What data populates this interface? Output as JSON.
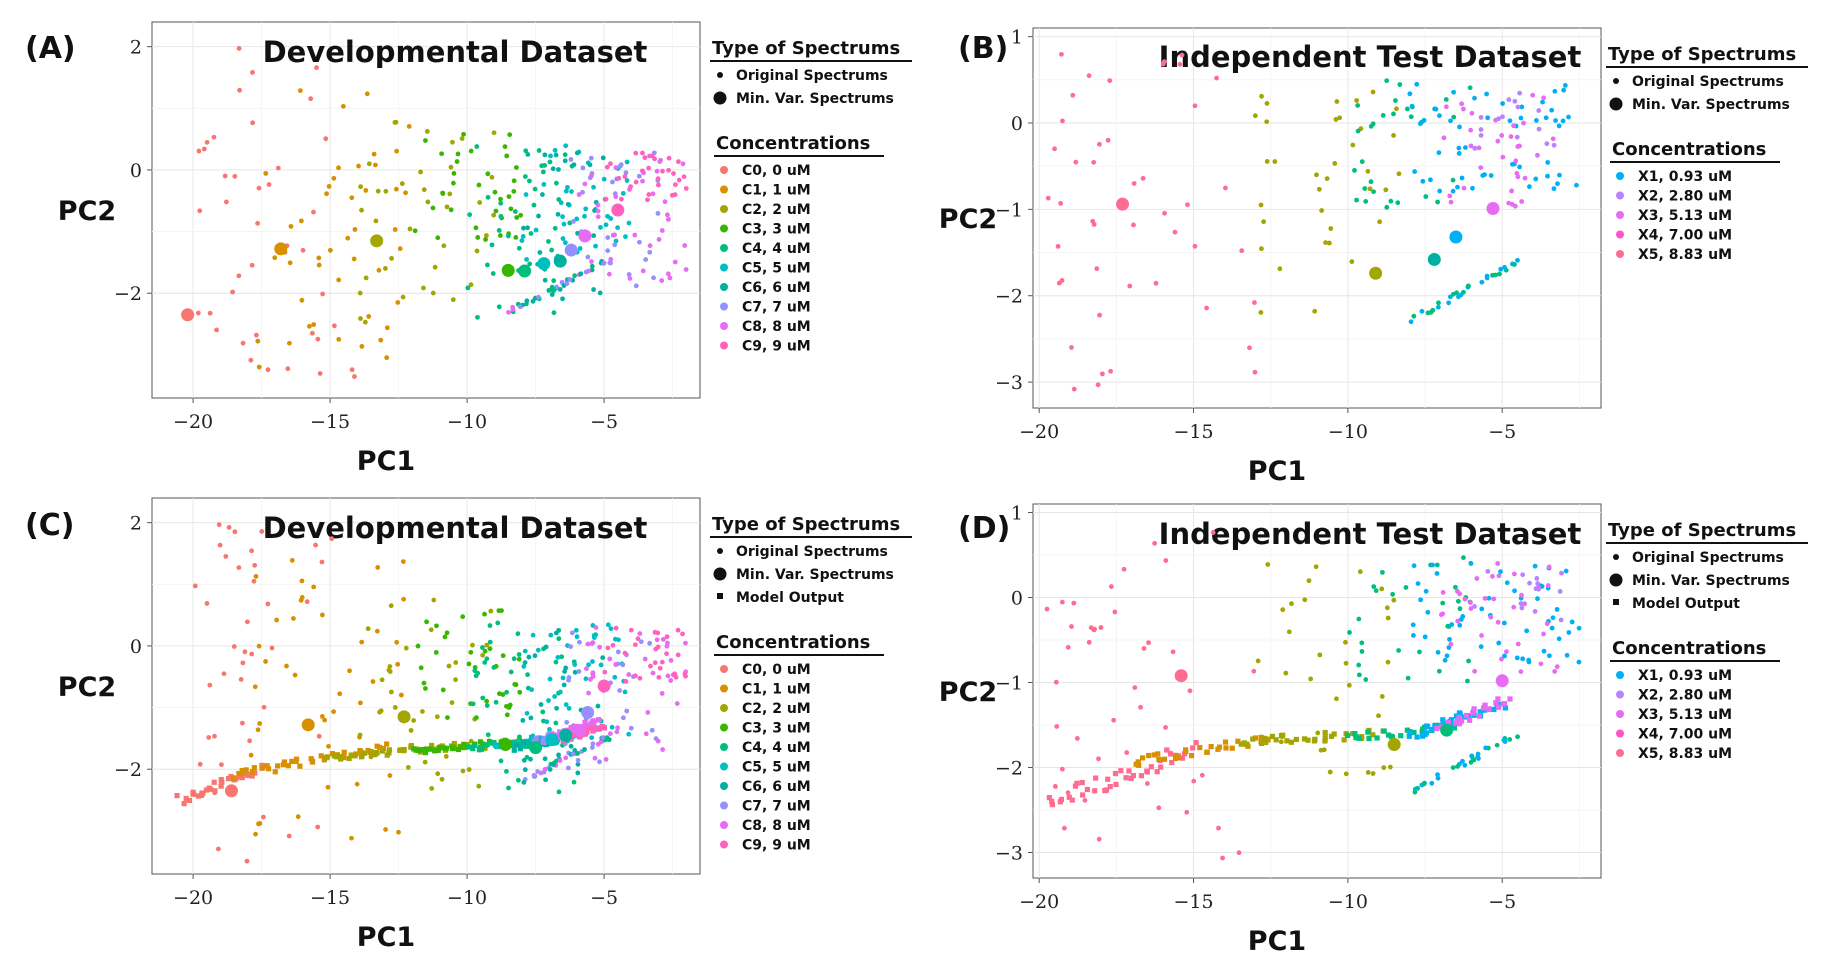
{
  "colors": {
    "C0": "#F8766D",
    "C1": "#D89000",
    "C2": "#A3A500",
    "C3": "#39B600",
    "C4": "#00BF7D",
    "C5": "#00BFC4",
    "C6": "#00B0A0",
    "C7": "#9590FF",
    "C8": "#E76BF3",
    "C9": "#FF62BC",
    "X1": "#00B0F6",
    "X2": "#B983FF",
    "X3": "#E76BF3",
    "X4": "#FF52C8",
    "X5": "#FF6C91"
  },
  "legends": {
    "type_title": "Type of Spectrums",
    "type_original": "Original Spectrums",
    "type_minvar": "Min. Var. Spectrums",
    "type_model": "Model Output",
    "conc_title": "Concentrations",
    "dev_concentrations": [
      {
        "key": "C0",
        "label": "C0, 0 uM"
      },
      {
        "key": "C1",
        "label": "C1, 1 uM"
      },
      {
        "key": "C2",
        "label": "C2, 2 uM"
      },
      {
        "key": "C3",
        "label": "C3, 3 uM"
      },
      {
        "key": "C4",
        "label": "C4, 4 uM"
      },
      {
        "key": "C5",
        "label": "C5, 5 uM"
      },
      {
        "key": "C6",
        "label": "C6, 6 uM"
      },
      {
        "key": "C7",
        "label": "C7, 7 uM"
      },
      {
        "key": "C8",
        "label": "C8, 8 uM"
      },
      {
        "key": "C9",
        "label": "C9, 9 uM"
      }
    ],
    "test_concentrations": [
      {
        "key": "X1",
        "label": "X1, 0.93 uM"
      },
      {
        "key": "X2",
        "label": "X2, 2.80 uM"
      },
      {
        "key": "X3",
        "label": "X3, 5.13 uM"
      },
      {
        "key": "X4",
        "label": "X4, 7.00 uM"
      },
      {
        "key": "X5",
        "label": "X5, 8.83 uM"
      }
    ]
  },
  "chart_data": [
    {
      "panel": "(A)",
      "type": "scatter",
      "title": "Developmental Dataset",
      "xlabel": "PC1",
      "ylabel": "PC2",
      "xlim": [
        -21.5,
        -1.5
      ],
      "ylim": [
        -3.7,
        2.4
      ],
      "xticks": [
        -20,
        -15,
        -10,
        -5
      ],
      "yticks": [
        -2,
        0,
        2
      ],
      "legend": "right",
      "minvar_points": [
        {
          "group": "C0",
          "x": -20.2,
          "y": -2.35
        },
        {
          "group": "C1",
          "x": -16.8,
          "y": -1.28
        },
        {
          "group": "C2",
          "x": -13.3,
          "y": -1.15
        },
        {
          "group": "C3",
          "x": -8.5,
          "y": -1.63
        },
        {
          "group": "C4",
          "x": -7.9,
          "y": -1.64
        },
        {
          "group": "C5",
          "x": -7.2,
          "y": -1.52
        },
        {
          "group": "C6",
          "x": -6.6,
          "y": -1.48
        },
        {
          "group": "C7",
          "x": -6.2,
          "y": -1.3
        },
        {
          "group": "C8",
          "x": -5.7,
          "y": -1.07
        },
        {
          "group": "C9",
          "x": -4.5,
          "y": -0.65
        }
      ],
      "model_output": []
    },
    {
      "panel": "(B)",
      "type": "scatter",
      "title": "Independent Test Dataset",
      "xlabel": "PC1",
      "ylabel": "PC2",
      "xlim": [
        -20.2,
        -1.8
      ],
      "ylim": [
        -3.3,
        1.1
      ],
      "xticks": [
        -20,
        -15,
        -10,
        -5
      ],
      "yticks": [
        -3,
        -2,
        -1,
        0,
        1
      ],
      "legend": "right",
      "minvar_points": [
        {
          "group": "X5",
          "x": -17.3,
          "y": -0.94
        },
        {
          "group": "C2",
          "x": -9.1,
          "y": -1.74
        },
        {
          "group": "C6",
          "x": -7.2,
          "y": -1.58
        },
        {
          "group": "X1",
          "x": -6.5,
          "y": -1.32
        },
        {
          "group": "X3",
          "x": -5.3,
          "y": -0.99
        }
      ],
      "model_output": []
    },
    {
      "panel": "(C)",
      "type": "scatter",
      "title": "Developmental Dataset",
      "xlabel": "PC1",
      "ylabel": "PC2",
      "xlim": [
        -21.5,
        -1.5
      ],
      "ylim": [
        -3.7,
        2.4
      ],
      "xticks": [
        -20,
        -15,
        -10,
        -5
      ],
      "yticks": [
        -2,
        0,
        2
      ],
      "legend": "right",
      "minvar_points": [
        {
          "group": "C0",
          "x": -18.6,
          "y": -2.35
        },
        {
          "group": "C1",
          "x": -15.8,
          "y": -1.28
        },
        {
          "group": "C2",
          "x": -12.3,
          "y": -1.15
        },
        {
          "group": "C3",
          "x": -8.6,
          "y": -1.6
        },
        {
          "group": "C4",
          "x": -7.5,
          "y": -1.65
        },
        {
          "group": "C5",
          "x": -6.9,
          "y": -1.52
        },
        {
          "group": "C6",
          "x": -6.4,
          "y": -1.45
        },
        {
          "group": "C7",
          "x": -5.6,
          "y": -1.08
        },
        {
          "group": "C8",
          "x": -5.9,
          "y": -1.37
        },
        {
          "group": "C9",
          "x": -5.0,
          "y": -0.65
        }
      ],
      "model_output": [
        {
          "group": "C0",
          "from": [
            -20.5,
            -2.5
          ],
          "to": [
            -17.5,
            -2.0
          ],
          "n": 34,
          "spread": 0.08
        },
        {
          "group": "C1",
          "from": [
            -18.5,
            -2.1
          ],
          "to": [
            -13.0,
            -1.65
          ],
          "n": 40,
          "spread": 0.07
        },
        {
          "group": "C2",
          "from": [
            -15.0,
            -1.8
          ],
          "to": [
            -10.0,
            -1.6
          ],
          "n": 40,
          "spread": 0.06
        },
        {
          "group": "C3",
          "from": [
            -12.0,
            -1.7
          ],
          "to": [
            -8.0,
            -1.55
          ],
          "n": 34,
          "spread": 0.05
        },
        {
          "group": "C4",
          "from": [
            -10.0,
            -1.65
          ],
          "to": [
            -7.0,
            -1.55
          ],
          "n": 30,
          "spread": 0.05
        },
        {
          "group": "C5",
          "from": [
            -9.0,
            -1.6
          ],
          "to": [
            -6.0,
            -1.45
          ],
          "n": 34,
          "spread": 0.05
        },
        {
          "group": "C6",
          "from": [
            -8.5,
            -1.65
          ],
          "to": [
            -6.5,
            -1.5
          ],
          "n": 22,
          "spread": 0.05
        },
        {
          "group": "C7",
          "from": [
            -7.5,
            -1.55
          ],
          "to": [
            -5.5,
            -1.3
          ],
          "n": 26,
          "spread": 0.05
        },
        {
          "group": "C8",
          "from": [
            -7.0,
            -1.5
          ],
          "to": [
            -5.2,
            -1.2
          ],
          "n": 28,
          "spread": 0.05
        },
        {
          "group": "C9",
          "from": [
            -6.5,
            -1.5
          ],
          "to": [
            -5.0,
            -1.3
          ],
          "n": 26,
          "spread": 0.05
        }
      ]
    },
    {
      "panel": "(D)",
      "type": "scatter",
      "title": "Independent Test Dataset",
      "xlabel": "PC1",
      "ylabel": "PC2",
      "xlim": [
        -20.2,
        -1.8
      ],
      "ylim": [
        -3.3,
        1.1
      ],
      "xticks": [
        -20,
        -15,
        -10,
        -5
      ],
      "yticks": [
        -3,
        -2,
        -1,
        0,
        1
      ],
      "legend": "right",
      "minvar_points": [
        {
          "group": "X5",
          "x": -15.4,
          "y": -0.92
        },
        {
          "group": "C2",
          "x": -8.5,
          "y": -1.73
        },
        {
          "group": "C4",
          "x": -6.8,
          "y": -1.56
        },
        {
          "group": "X3",
          "x": -5.0,
          "y": -0.98
        }
      ],
      "model_output": [
        {
          "group": "X5",
          "from": [
            -19.7,
            -2.4
          ],
          "to": [
            -15.0,
            -1.8
          ],
          "n": 40,
          "spread": 0.1
        },
        {
          "group": "C1",
          "from": [
            -17.0,
            -1.95
          ],
          "to": [
            -12.5,
            -1.65
          ],
          "n": 32,
          "spread": 0.06
        },
        {
          "group": "C2",
          "from": [
            -13.5,
            -1.7
          ],
          "to": [
            -9.0,
            -1.6
          ],
          "n": 32,
          "spread": 0.05
        },
        {
          "group": "C4",
          "from": [
            -10.0,
            -1.65
          ],
          "to": [
            -6.5,
            -1.52
          ],
          "n": 24,
          "spread": 0.05
        },
        {
          "group": "X1",
          "from": [
            -8.0,
            -1.62
          ],
          "to": [
            -5.0,
            -1.25
          ],
          "n": 34,
          "spread": 0.05
        },
        {
          "group": "X3",
          "from": [
            -7.0,
            -1.55
          ],
          "to": [
            -4.8,
            -1.2
          ],
          "n": 26,
          "spread": 0.05
        }
      ]
    }
  ]
}
